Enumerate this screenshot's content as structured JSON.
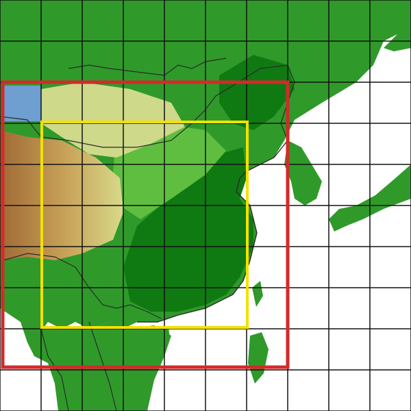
{
  "map": {
    "colors": {
      "ocean": "#ffffff",
      "lowland_dark": "#0f7a12",
      "lowland": "#2f9a2a",
      "plain": "#5fbe3f",
      "upland": "#9fd25a",
      "plateau_light": "#cfd98a",
      "plateau": "#c9a45a",
      "highland": "#a06a35",
      "lake": "#6f9fd0",
      "grid": "#111111",
      "borders": "#2a2a2a",
      "outer_domain": "#d42a2a",
      "inner_domain": "#f2e200"
    },
    "grid": {
      "spacing_deg": 5
    },
    "domains": [
      {
        "id": "outer",
        "label": ""
      },
      {
        "id": "inner",
        "label": ""
      }
    ]
  }
}
